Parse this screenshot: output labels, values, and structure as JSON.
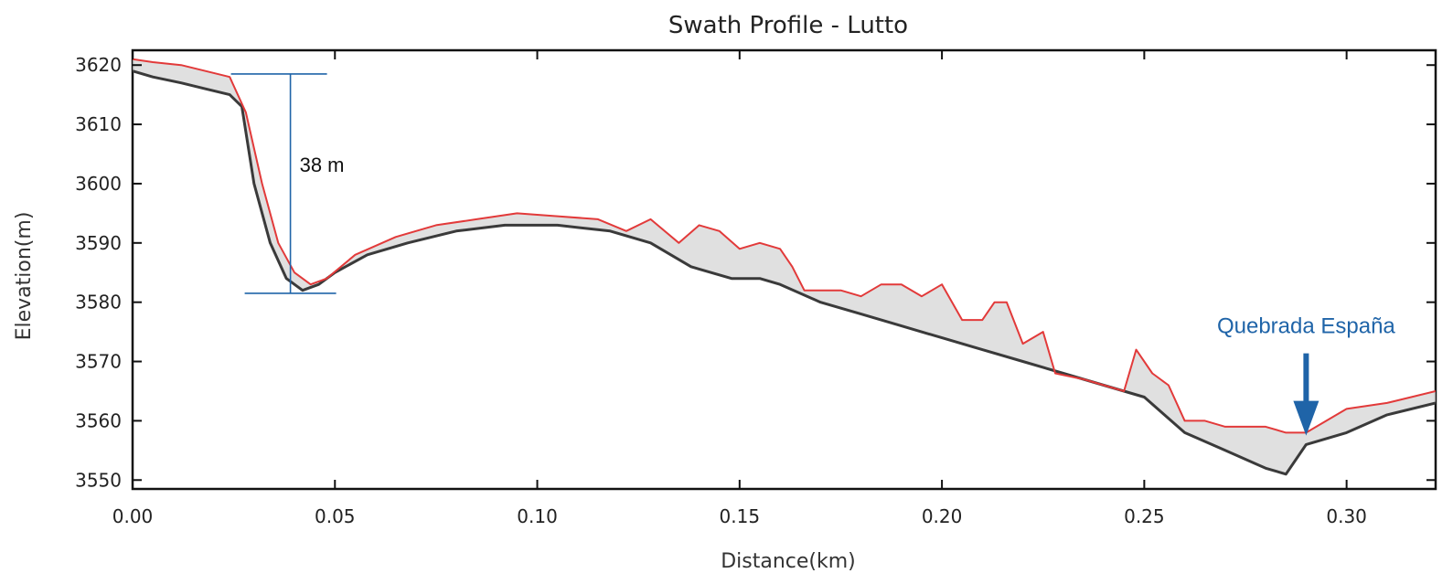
{
  "chart_data": {
    "type": "line",
    "title": "Swath Profile - Lutto",
    "xlabel": "Distance(km)",
    "ylabel": "Elevation(m)",
    "xlim": [
      0.0,
      0.322
    ],
    "ylim": [
      3548.5,
      3622.5
    ],
    "xticks": [
      "0.00",
      "0.05",
      "0.10",
      "0.15",
      "0.20",
      "0.25",
      "0.30"
    ],
    "yticks": [
      "3550",
      "3560",
      "3570",
      "3580",
      "3590",
      "3600",
      "3610",
      "3620"
    ],
    "grid": false,
    "series": [
      {
        "color": "#e23a3a",
        "x": [
          0.0,
          0.005,
          0.012,
          0.018,
          0.024,
          0.028,
          0.032,
          0.036,
          0.04,
          0.044,
          0.048,
          0.055,
          0.065,
          0.075,
          0.085,
          0.095,
          0.105,
          0.115,
          0.122,
          0.128,
          0.135,
          0.14,
          0.145,
          0.15,
          0.155,
          0.16,
          0.163,
          0.166,
          0.17,
          0.175,
          0.18,
          0.185,
          0.19,
          0.195,
          0.2,
          0.205,
          0.21,
          0.213,
          0.216,
          0.22,
          0.225,
          0.228,
          0.235,
          0.245,
          0.248,
          0.252,
          0.256,
          0.26,
          0.265,
          0.27,
          0.275,
          0.28,
          0.285,
          0.29,
          0.295,
          0.3,
          0.31,
          0.322
        ],
        "y": [
          3621,
          3620.5,
          3620,
          3619,
          3618,
          3612,
          3600,
          3590,
          3585,
          3583,
          3584,
          3588,
          3591,
          3593,
          3594,
          3595,
          3594.5,
          3594,
          3592,
          3594,
          3590,
          3593,
          3592,
          3589,
          3590,
          3589,
          3586,
          3582,
          3582,
          3582,
          3581,
          3583,
          3583,
          3581,
          3583,
          3577,
          3577,
          3580,
          3580,
          3573,
          3575,
          3568,
          3567,
          3565,
          3572,
          3568,
          3566,
          3560,
          3560,
          3559,
          3559,
          3559,
          3558,
          3558,
          3560,
          3562,
          3563,
          3565
        ]
      },
      {
        "color": "#3a3a3a",
        "x": [
          0.0,
          0.005,
          0.012,
          0.018,
          0.024,
          0.027,
          0.03,
          0.034,
          0.038,
          0.042,
          0.046,
          0.05,
          0.058,
          0.068,
          0.08,
          0.092,
          0.105,
          0.118,
          0.128,
          0.138,
          0.148,
          0.155,
          0.16,
          0.17,
          0.18,
          0.19,
          0.2,
          0.21,
          0.22,
          0.23,
          0.24,
          0.25,
          0.26,
          0.27,
          0.28,
          0.285,
          0.29,
          0.3,
          0.31,
          0.322
        ],
        "y": [
          3619,
          3618,
          3617,
          3616,
          3615,
          3613,
          3600,
          3590,
          3584,
          3582,
          3583,
          3585,
          3588,
          3590,
          3592,
          3593,
          3593,
          3592,
          3590,
          3586,
          3584,
          3584,
          3583,
          3580,
          3578,
          3576,
          3574,
          3572,
          3570,
          3568,
          3566,
          3564,
          3558,
          3555,
          3552,
          3551,
          3556,
          3558,
          3561,
          3563
        ]
      }
    ],
    "annotations": [
      {
        "text": "38 m",
        "type": "elevation-bar",
        "x": 0.039,
        "y_top": 3618.5,
        "y_bottom": 3581.5
      },
      {
        "text": "Quebrada España",
        "type": "arrow",
        "x": 0.29,
        "y_tip": 3557.5
      }
    ]
  }
}
